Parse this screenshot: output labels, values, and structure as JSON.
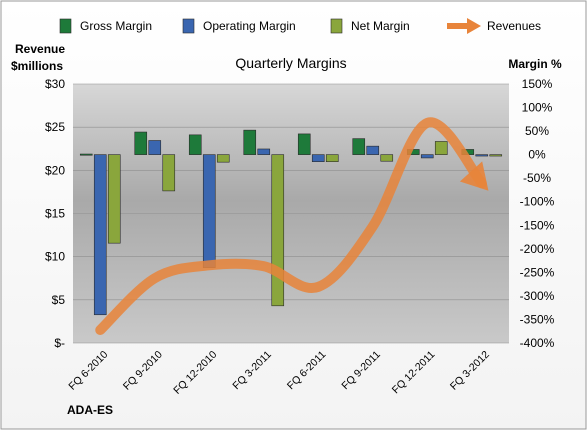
{
  "chart_data": {
    "type": "bar",
    "title": "Quarterly Margins",
    "left_axis_label_line1": "Revenue",
    "left_axis_label_line2": "$millions",
    "right_axis_label": "Margin %",
    "footer_label": "ADA-ES",
    "categories": [
      "FQ 6-2010",
      "FQ 9-2010",
      "FQ 12-2010",
      "FQ 3-2011",
      "FQ 6-2011",
      "FQ 9-2011",
      "FQ 12-2011",
      "FQ 3-2012"
    ],
    "left_axis": {
      "min": 0,
      "max": 30,
      "ticks": [
        0,
        5,
        10,
        15,
        20,
        25,
        30
      ],
      "tick_labels": [
        "$-",
        "$5",
        "$10",
        "$15",
        "$20",
        "$25",
        "$30"
      ]
    },
    "right_axis": {
      "min": -400,
      "max": 150,
      "ticks": [
        150,
        100,
        50,
        0,
        -50,
        -100,
        -150,
        -200,
        -250,
        -300,
        -350,
        -400
      ],
      "tick_labels": [
        "150%",
        "100%",
        "50%",
        "0%",
        "-50%",
        "-100%",
        "-150%",
        "-200%",
        "-250%",
        "-300%",
        "-350%",
        "-400%"
      ]
    },
    "legend_position": "top",
    "series": [
      {
        "name": "Gross Margin",
        "axis": "right",
        "kind": "bar",
        "color": "#1e7a3a",
        "values": [
          0,
          48,
          42,
          52,
          44,
          34,
          11,
          11
        ]
      },
      {
        "name": "Operating Margin",
        "axis": "right",
        "kind": "bar",
        "color": "#3a66b0",
        "values": [
          -340,
          30,
          -240,
          12,
          -15,
          18,
          -7,
          -3
        ]
      },
      {
        "name": "Net Margin",
        "axis": "right",
        "kind": "bar",
        "color": "#8aa63c",
        "values": [
          -188,
          -77,
          -16,
          -321,
          -15,
          -14,
          28,
          -3
        ]
      },
      {
        "name": "Revenues",
        "axis": "left",
        "kind": "line",
        "color": "#e8843a",
        "values": [
          1.5,
          7.5,
          9.0,
          8.9,
          6.5,
          13.5,
          25.5,
          18.5
        ]
      }
    ]
  }
}
